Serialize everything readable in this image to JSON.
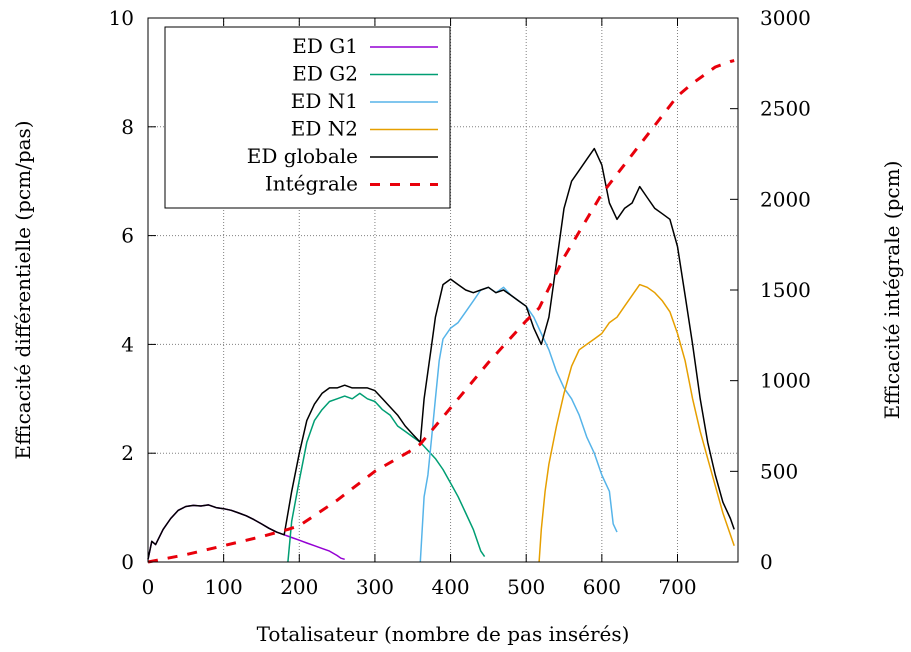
{
  "chart_data": {
    "type": "line",
    "title": "",
    "xlabel": "Totalisateur (nombre de pas insérés)",
    "ylabel": "Efficacité différentielle (pcm/pas)",
    "y2label": "Efficacité intégrale (pcm)",
    "xlim": [
      0,
      780
    ],
    "ylim": [
      0,
      10
    ],
    "y2lim": [
      0,
      3000
    ],
    "xticks": [
      0,
      100,
      200,
      300,
      400,
      500,
      600,
      700
    ],
    "yticks": [
      0,
      2,
      4,
      6,
      8,
      10
    ],
    "y2ticks": [
      0,
      500,
      1000,
      1500,
      2000,
      2500,
      3000
    ],
    "grid": true,
    "legend_position": "top-left",
    "series": [
      {
        "name": "ED G1",
        "axis": "left",
        "color": "#9400d3",
        "style": "solid",
        "x": [
          0,
          5,
          10,
          20,
          30,
          40,
          50,
          60,
          70,
          80,
          90,
          100,
          110,
          120,
          130,
          140,
          150,
          160,
          170,
          180,
          190,
          200,
          210,
          220,
          230,
          240,
          250,
          255,
          260
        ],
        "y": [
          0.05,
          0.38,
          0.32,
          0.6,
          0.8,
          0.95,
          1.02,
          1.04,
          1.03,
          1.05,
          1.0,
          0.98,
          0.95,
          0.9,
          0.85,
          0.78,
          0.7,
          0.62,
          0.55,
          0.5,
          0.45,
          0.4,
          0.35,
          0.3,
          0.25,
          0.2,
          0.12,
          0.07,
          0.05
        ]
      },
      {
        "name": "ED G2",
        "axis": "left",
        "color": "#009e73",
        "style": "solid",
        "x": [
          185,
          190,
          200,
          210,
          220,
          230,
          240,
          250,
          260,
          270,
          280,
          290,
          300,
          310,
          320,
          330,
          340,
          350,
          360,
          370,
          380,
          390,
          400,
          410,
          420,
          430,
          440,
          445
        ],
        "y": [
          0.0,
          0.75,
          1.5,
          2.2,
          2.6,
          2.8,
          2.95,
          3.0,
          3.05,
          3.0,
          3.1,
          3.0,
          2.95,
          2.8,
          2.7,
          2.5,
          2.4,
          2.3,
          2.2,
          2.05,
          1.9,
          1.7,
          1.45,
          1.2,
          0.9,
          0.6,
          0.2,
          0.1
        ]
      },
      {
        "name": "ED N1",
        "axis": "left",
        "color": "#56b4e9",
        "style": "solid",
        "x": [
          360,
          365,
          370,
          375,
          380,
          385,
          390,
          400,
          410,
          420,
          430,
          440,
          450,
          460,
          470,
          480,
          490,
          500,
          510,
          520,
          530,
          540,
          550,
          560,
          570,
          580,
          590,
          600,
          610,
          615,
          620
        ],
        "y": [
          0.0,
          1.2,
          1.6,
          2.3,
          3.0,
          3.7,
          4.1,
          4.3,
          4.4,
          4.6,
          4.8,
          5.0,
          5.05,
          4.95,
          5.05,
          4.9,
          4.8,
          4.7,
          4.5,
          4.2,
          3.9,
          3.5,
          3.2,
          3.0,
          2.7,
          2.3,
          2.0,
          1.6,
          1.3,
          0.7,
          0.55
        ]
      },
      {
        "name": "ED N2",
        "axis": "left",
        "color": "#e69f00",
        "style": "solid",
        "x": [
          517,
          520,
          525,
          530,
          540,
          550,
          560,
          570,
          580,
          590,
          600,
          610,
          620,
          630,
          640,
          650,
          660,
          670,
          680,
          690,
          700,
          710,
          720,
          730,
          740,
          750,
          760,
          770,
          775
        ],
        "y": [
          0.0,
          0.6,
          1.3,
          1.8,
          2.5,
          3.1,
          3.6,
          3.9,
          4.0,
          4.1,
          4.2,
          4.4,
          4.5,
          4.7,
          4.9,
          5.1,
          5.05,
          4.95,
          4.8,
          4.6,
          4.2,
          3.7,
          3.0,
          2.4,
          1.9,
          1.4,
          0.9,
          0.5,
          0.3
        ]
      },
      {
        "name": "ED globale",
        "axis": "left",
        "color": "#000000",
        "style": "solid",
        "x": [
          0,
          5,
          10,
          20,
          30,
          40,
          50,
          60,
          70,
          80,
          90,
          100,
          110,
          120,
          130,
          140,
          150,
          160,
          170,
          180,
          190,
          200,
          210,
          220,
          230,
          240,
          250,
          260,
          270,
          280,
          290,
          300,
          310,
          320,
          330,
          340,
          350,
          360,
          365,
          370,
          375,
          380,
          385,
          390,
          400,
          410,
          420,
          430,
          440,
          450,
          460,
          470,
          480,
          490,
          500,
          510,
          520,
          530,
          540,
          550,
          560,
          570,
          580,
          590,
          600,
          610,
          620,
          630,
          640,
          650,
          660,
          670,
          680,
          690,
          700,
          710,
          720,
          730,
          740,
          750,
          760,
          770,
          775
        ],
        "y": [
          0.05,
          0.38,
          0.32,
          0.6,
          0.8,
          0.95,
          1.02,
          1.04,
          1.03,
          1.05,
          1.0,
          0.98,
          0.95,
          0.9,
          0.85,
          0.78,
          0.7,
          0.62,
          0.55,
          0.5,
          1.3,
          2.0,
          2.6,
          2.9,
          3.1,
          3.2,
          3.2,
          3.25,
          3.2,
          3.2,
          3.2,
          3.15,
          3.0,
          2.85,
          2.7,
          2.5,
          2.35,
          2.2,
          3.0,
          3.5,
          4.0,
          4.5,
          4.8,
          5.1,
          5.2,
          5.1,
          5.0,
          4.95,
          5.0,
          5.05,
          4.95,
          5.0,
          4.9,
          4.8,
          4.7,
          4.3,
          4.0,
          4.5,
          5.5,
          6.5,
          7.0,
          7.2,
          7.4,
          7.6,
          7.3,
          6.6,
          6.3,
          6.5,
          6.6,
          6.9,
          6.7,
          6.5,
          6.4,
          6.3,
          5.8,
          4.9,
          4.0,
          3.0,
          2.2,
          1.6,
          1.1,
          0.8,
          0.6
        ]
      },
      {
        "name": "Intégrale",
        "axis": "right",
        "color": "#e8000b",
        "style": "dashed",
        "x": [
          0,
          50,
          100,
          150,
          185,
          200,
          250,
          300,
          350,
          360,
          400,
          450,
          500,
          517,
          550,
          600,
          650,
          700,
          720,
          750,
          770,
          775
        ],
        "y": [
          0,
          40,
          90,
          140,
          180,
          200,
          340,
          500,
          620,
          650,
          850,
          1100,
          1330,
          1400,
          1680,
          2030,
          2300,
          2570,
          2640,
          2730,
          2760,
          2765
        ]
      }
    ]
  }
}
